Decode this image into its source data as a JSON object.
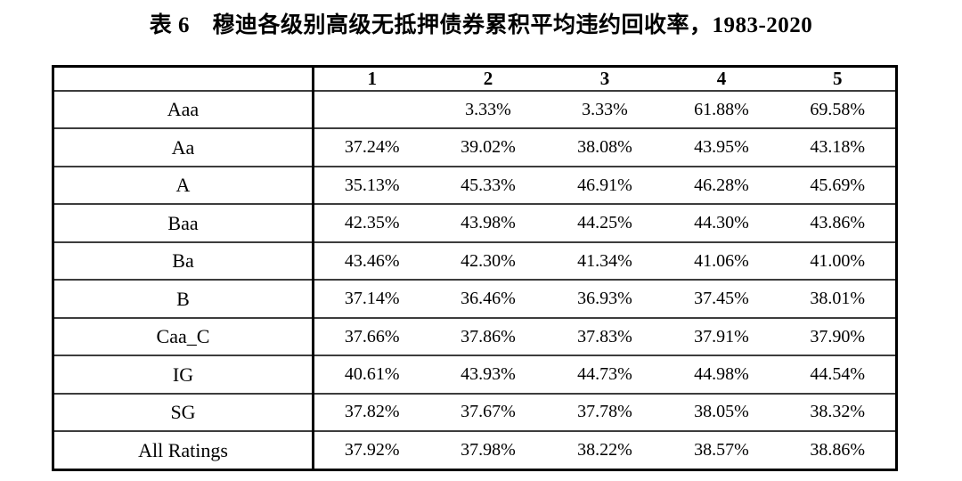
{
  "title": "表 6　穆迪各级别高级无抵押债券累积平均违约回收率，1983-2020",
  "chart_data": {
    "type": "table",
    "title": "表 6　穆迪各级别高级无抵押债券累积平均违约回收率，1983-2020",
    "columns": [
      "",
      "1",
      "2",
      "3",
      "4",
      "5"
    ],
    "rows": [
      {
        "label": "Aaa",
        "values": [
          "",
          "3.33%",
          "3.33%",
          "61.88%",
          "69.58%"
        ]
      },
      {
        "label": "Aa",
        "values": [
          "37.24%",
          "39.02%",
          "38.08%",
          "43.95%",
          "43.18%"
        ]
      },
      {
        "label": "A",
        "values": [
          "35.13%",
          "45.33%",
          "46.91%",
          "46.28%",
          "45.69%"
        ]
      },
      {
        "label": "Baa",
        "values": [
          "42.35%",
          "43.98%",
          "44.25%",
          "44.30%",
          "43.86%"
        ]
      },
      {
        "label": "Ba",
        "values": [
          "43.46%",
          "42.30%",
          "41.34%",
          "41.06%",
          "41.00%"
        ]
      },
      {
        "label": "B",
        "values": [
          "37.14%",
          "36.46%",
          "36.93%",
          "37.45%",
          "38.01%"
        ]
      },
      {
        "label": "Caa_C",
        "values": [
          "37.66%",
          "37.86%",
          "37.83%",
          "37.91%",
          "37.90%"
        ]
      },
      {
        "label": "IG",
        "values": [
          "40.61%",
          "43.93%",
          "44.73%",
          "44.98%",
          "44.54%"
        ]
      },
      {
        "label": "SG",
        "values": [
          "37.82%",
          "37.67%",
          "37.78%",
          "38.05%",
          "38.32%"
        ]
      },
      {
        "label": "All Ratings",
        "values": [
          "37.92%",
          "37.98%",
          "38.22%",
          "38.57%",
          "38.86%"
        ]
      }
    ],
    "layout": {
      "grid": "horizontal rules between all rows; single heavy vertical divider after label column; heavy outer border",
      "value_alignment": "center",
      "header_style": "bold"
    },
    "colors": {
      "background": "#ffffff",
      "text": "#000000",
      "border_outer": "#000000",
      "border_inner": "#3d3d3d"
    }
  }
}
